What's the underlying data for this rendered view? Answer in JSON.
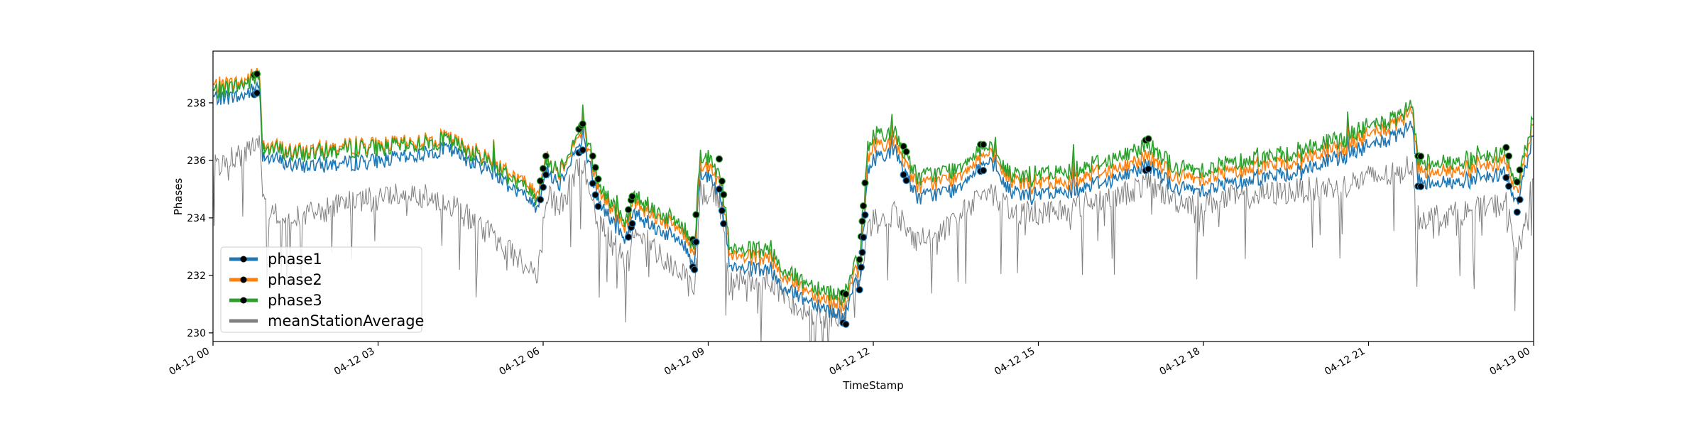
{
  "chart_data": {
    "type": "line",
    "xlabel": "TimeStamp",
    "ylabel": "Phases",
    "x_ticks": [
      "04-12 00",
      "04-12 03",
      "04-12 06",
      "04-12 09",
      "04-12 12",
      "04-12 15",
      "04-12 18",
      "04-12 21",
      "04-13 00"
    ],
    "y_ticks": [
      "230",
      "232",
      "234",
      "236",
      "238"
    ],
    "xlim": [
      0,
      24
    ],
    "ylim": [
      229.7,
      239.8
    ],
    "x_unit": "hours since 04-12 00:00",
    "grid": false,
    "legend_position": "lower-left",
    "series": [
      {
        "name": "phase1",
        "color": "#1f77b4",
        "x": [
          0,
          0.5,
          0.85,
          0.9,
          1.5,
          2.5,
          3.5,
          4.25,
          5,
          5.9,
          6.05,
          6.3,
          6.6,
          6.75,
          7,
          7.5,
          7.65,
          8,
          8.5,
          8.75,
          8.85,
          9.2,
          9.4,
          10,
          10.5,
          11,
          11.5,
          11.6,
          11.75,
          11.9,
          12,
          12.1,
          12.4,
          12.8,
          13.5,
          13.9,
          14.1,
          14.5,
          15,
          15.5,
          16,
          16.5,
          17,
          17.5,
          18,
          18.5,
          19,
          19.5,
          20,
          20.5,
          21,
          21.5,
          21.8,
          21.9,
          22.5,
          23,
          23.5,
          23.7,
          24
        ],
        "y": [
          238.2,
          238.2,
          238.6,
          236.2,
          235.8,
          235.9,
          236.1,
          236.4,
          235.7,
          234.4,
          235.7,
          235.2,
          236.4,
          236.6,
          234.6,
          233.2,
          234.2,
          233.7,
          233.2,
          232.4,
          235.6,
          235.2,
          232.2,
          232.2,
          231.4,
          231.0,
          230.5,
          231.6,
          231.7,
          235.6,
          236.0,
          236.2,
          236.3,
          234.7,
          235.0,
          235.8,
          235.9,
          234.9,
          234.8,
          234.9,
          235.2,
          235.4,
          235.9,
          235.0,
          235.0,
          235.2,
          235.4,
          235.5,
          235.8,
          236.1,
          236.5,
          236.8,
          237.2,
          235.3,
          235.2,
          235.3,
          235.6,
          234.4,
          237.0
        ]
      },
      {
        "name": "phase2",
        "color": "#ff7f0e",
        "x": [
          0,
          0.5,
          0.85,
          0.9,
          1.5,
          2.5,
          3.5,
          4.25,
          5,
          5.9,
          6.05,
          6.3,
          6.6,
          6.75,
          7,
          7.5,
          7.65,
          8,
          8.5,
          8.75,
          8.85,
          9.2,
          9.4,
          10,
          10.5,
          11,
          11.5,
          11.6,
          11.75,
          11.9,
          12,
          12.1,
          12.4,
          12.8,
          13.5,
          13.9,
          14.1,
          14.5,
          15,
          15.5,
          16,
          16.5,
          17,
          17.5,
          18,
          18.5,
          19,
          19.5,
          20,
          20.5,
          21,
          21.5,
          21.8,
          21.9,
          22.5,
          23,
          23.5,
          23.7,
          24
        ],
        "y": [
          238.6,
          238.7,
          239.1,
          236.6,
          236.3,
          236.5,
          236.6,
          236.8,
          236.1,
          234.9,
          236.1,
          235.6,
          236.7,
          237.0,
          235.0,
          233.6,
          234.6,
          234.1,
          233.6,
          232.8,
          235.9,
          235.6,
          232.6,
          232.6,
          231.8,
          231.3,
          230.9,
          232.0,
          232.1,
          236.0,
          236.5,
          236.6,
          236.6,
          235.1,
          235.4,
          236.1,
          236.2,
          235.3,
          235.2,
          235.2,
          235.6,
          235.7,
          236.2,
          235.4,
          235.4,
          235.6,
          235.8,
          235.9,
          236.2,
          236.4,
          236.9,
          237.2,
          237.7,
          235.7,
          235.6,
          235.7,
          236.0,
          234.8,
          237.4
        ]
      },
      {
        "name": "phase3",
        "color": "#2ca02c",
        "x": [
          0,
          0.5,
          0.85,
          0.9,
          1.5,
          2.5,
          3.5,
          4.25,
          5,
          5.9,
          6.05,
          6.3,
          6.6,
          6.75,
          7,
          7.5,
          7.65,
          8,
          8.5,
          8.75,
          8.85,
          9.2,
          9.4,
          10,
          10.5,
          11,
          11.5,
          11.6,
          11.75,
          11.9,
          12,
          12.1,
          12.4,
          12.8,
          13.5,
          13.9,
          14.1,
          14.5,
          15,
          15.5,
          16,
          16.5,
          17,
          17.5,
          18,
          18.5,
          19,
          19.5,
          20,
          20.5,
          21,
          21.5,
          21.8,
          21.9,
          22.5,
          23,
          23.5,
          23.7,
          24
        ],
        "y": [
          238.4,
          238.6,
          238.9,
          236.5,
          236.2,
          236.4,
          236.5,
          236.7,
          236.0,
          234.7,
          236.0,
          235.7,
          236.8,
          237.2,
          235.2,
          233.8,
          234.8,
          234.3,
          233.8,
          233.0,
          236.2,
          235.9,
          232.8,
          232.9,
          232.0,
          231.6,
          231.2,
          232.3,
          232.4,
          236.4,
          236.8,
          237.0,
          236.9,
          235.4,
          235.7,
          236.4,
          236.4,
          235.5,
          235.5,
          235.6,
          235.9,
          236.1,
          236.6,
          235.7,
          235.7,
          235.9,
          236.1,
          236.2,
          236.5,
          236.7,
          237.2,
          237.4,
          237.9,
          236.0,
          235.9,
          236.0,
          236.3,
          235.1,
          237.6
        ]
      },
      {
        "name": "meanStationAverage",
        "color": "#808080",
        "x": [
          0,
          0.5,
          0.85,
          0.9,
          1.5,
          2.5,
          3.5,
          4.25,
          5,
          5.9,
          6.05,
          6.3,
          6.6,
          6.75,
          7,
          7.5,
          7.65,
          8,
          8.5,
          8.75,
          8.85,
          9.2,
          9.4,
          10,
          10.5,
          11,
          11.5,
          11.6,
          11.75,
          11.9,
          12,
          12.1,
          12.4,
          12.8,
          13.5,
          13.9,
          14.1,
          14.5,
          15,
          15.5,
          16,
          16.5,
          17,
          17.5,
          18,
          18.5,
          19,
          19.5,
          20,
          20.5,
          21,
          21.5,
          21.8,
          21.9,
          22.5,
          23,
          23.5,
          23.7,
          24
        ],
        "y": [
          235.8,
          236.2,
          236.6,
          234.4,
          234.0,
          234.5,
          234.9,
          234.6,
          233.5,
          232.0,
          234.8,
          234.3,
          235.6,
          235.8,
          233.9,
          232.4,
          233.6,
          233.0,
          232.1,
          231.4,
          234.9,
          234.7,
          231.8,
          231.9,
          231.1,
          230.6,
          230.6,
          231.6,
          231.8,
          233.5,
          234.0,
          233.8,
          234.2,
          233.2,
          233.8,
          234.8,
          235.0,
          234.2,
          234.2,
          234.3,
          234.6,
          234.8,
          235.2,
          234.6,
          234.5,
          234.7,
          234.8,
          234.9,
          235.0,
          235.1,
          235.4,
          235.5,
          235.9,
          234.0,
          234.1,
          234.3,
          234.5,
          232.6,
          235.4
        ]
      }
    ],
    "marker_times": [
      0.75,
      0.78,
      0.8,
      5.95,
      6.0,
      6.05,
      6.65,
      6.7,
      6.72,
      6.9,
      6.95,
      7.0,
      7.55,
      7.6,
      7.62,
      8.72,
      8.75,
      8.78,
      9.2,
      9.25,
      9.28,
      11.45,
      11.5,
      11.75,
      11.78,
      11.8,
      11.82,
      11.85,
      12.55,
      12.6,
      13.95,
      14.0,
      16.95,
      17.0,
      21.9,
      21.95,
      23.5,
      23.55,
      23.7,
      23.75
    ]
  }
}
